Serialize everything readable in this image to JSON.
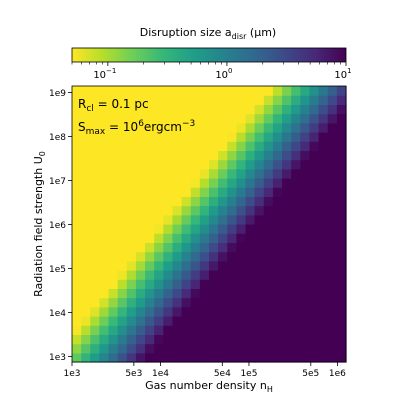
{
  "chart_data": {
    "type": "heatmap",
    "title": "",
    "xlabel": {
      "main": "Gas number density n",
      "sub": "H"
    },
    "ylabel": {
      "main": "Radiation field strength U",
      "sub": "0"
    },
    "x_scale": "log",
    "y_scale": "log",
    "xlim": [
      1000,
      1250000
    ],
    "ylim": [
      750,
      1400000000
    ],
    "x_ticks": [
      {
        "value": 1000,
        "label": "1e3"
      },
      {
        "value": 5000,
        "label": "5e3"
      },
      {
        "value": 10000,
        "label": "1e4"
      },
      {
        "value": 50000,
        "label": "5e4"
      },
      {
        "value": 100000,
        "label": "1e5"
      },
      {
        "value": 500000,
        "label": "5e5"
      },
      {
        "value": 1000000,
        "label": "1e6"
      }
    ],
    "y_ticks": [
      {
        "value": 1000,
        "label": "1e3"
      },
      {
        "value": 10000,
        "label": "1e4"
      },
      {
        "value": 100000,
        "label": "1e5"
      },
      {
        "value": 1000000,
        "label": "1e6"
      },
      {
        "value": 10000000,
        "label": "1e7"
      },
      {
        "value": 100000000,
        "label": "1e8"
      },
      {
        "value": 1000000000,
        "label": "1e9"
      }
    ],
    "colorbar": {
      "label": {
        "main": "Disruption size a",
        "sub": "disr",
        "unit": " (μm)"
      },
      "scale": "log",
      "range": [
        0.05,
        10
      ],
      "colormap": "viridis",
      "colormap_stops": [
        "#fde725",
        "#b5de2b",
        "#6ece58",
        "#35b779",
        "#1f9e89",
        "#26828e",
        "#31688e",
        "#3e4989",
        "#482878",
        "#440154"
      ],
      "ticks": [
        {
          "value": 0.1,
          "base": "10",
          "exp": "−1"
        },
        {
          "value": 1,
          "base": "10",
          "exp": "0"
        },
        {
          "value": 10,
          "base": "10",
          "exp": "1"
        }
      ]
    },
    "model": {
      "description": "a_disr grows along constant ridge log10(U0) - 2.5*log10(nH); small sizes (yellow) at low density / high radiation, large sizes (purple) at high density / low radiation",
      "yellow_boundary_at_1e9": 40000,
      "yellow_boundary_at_1e3": 2500,
      "max_value": 10,
      "min_value": 0.05
    },
    "annotations": [
      {
        "id": "rcl",
        "main": "R",
        "sub": "cl",
        "rest": " = 0.1 pc"
      },
      {
        "id": "smax",
        "main": "S",
        "sub": "max",
        "rest": " = 10",
        "sup": "6",
        "tail": "ergcm",
        "tail_sup": "−3"
      }
    ]
  }
}
